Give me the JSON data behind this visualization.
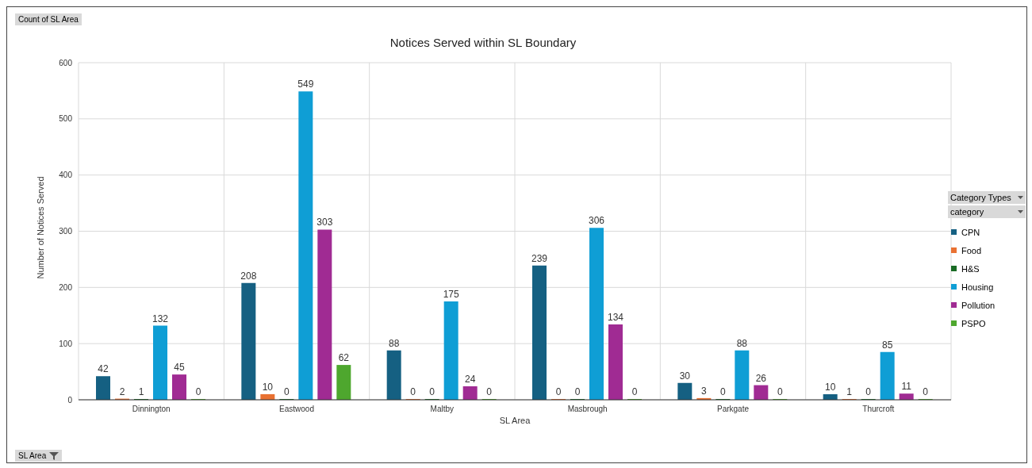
{
  "chart_data": {
    "type": "bar",
    "title": "Notices Served within SL Boundary",
    "xlabel": "SL Area",
    "ylabel": "Number of Notices Served",
    "legend_title": "Category Types",
    "annotations": [
      "Count of SL Area",
      "category",
      "SL Area"
    ],
    "categories": [
      "Dinnington",
      "Eastwood",
      "Maltby",
      "Masbrough",
      "Parkgate",
      "Thurcroft"
    ],
    "series": [
      {
        "name": "CPN",
        "color": "#156082",
        "values": [
          42,
          208,
          88,
          239,
          30,
          10
        ]
      },
      {
        "name": "Food",
        "color": "#e97132",
        "values": [
          2,
          10,
          0,
          0,
          3,
          1
        ]
      },
      {
        "name": "H&S",
        "color": "#196b24",
        "values": [
          1,
          0,
          0,
          0,
          0,
          0
        ]
      },
      {
        "name": "Housing",
        "color": "#0f9ed5",
        "values": [
          132,
          549,
          175,
          306,
          88,
          85
        ]
      },
      {
        "name": "Pollution",
        "color": "#a02b93",
        "values": [
          45,
          303,
          24,
          134,
          26,
          11
        ]
      },
      {
        "name": "PSPO",
        "color": "#4ea72e",
        "values": [
          0,
          62,
          0,
          0,
          0,
          0
        ]
      }
    ],
    "ylim": [
      0,
      600
    ],
    "yticks": [
      0,
      100,
      200,
      300,
      400,
      500,
      600
    ],
    "grid": true,
    "legend": "right",
    "data_labels": true
  }
}
